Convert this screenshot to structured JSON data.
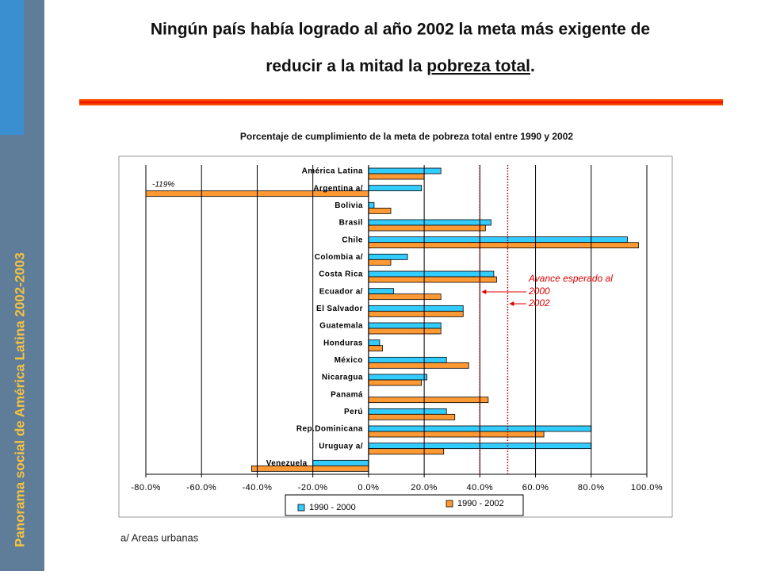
{
  "slide": {
    "sidebar": "Panorama social de América Latina 2002-2003",
    "title_line1": "Ningún país había logrado al año 2002 la meta más exigente de",
    "title_line2_start": "reducir a la mitad la ",
    "title_line2_underlined": "pobreza total",
    "title_line2_end": ".",
    "footnote": "a/ Areas urbanas"
  },
  "chart_data": {
    "type": "hbar",
    "title": "Porcentaje de cumplimiento de la meta de pobreza total entre 1990 y 2002",
    "categories": [
      "América Latina",
      "Argentina a/",
      "Bolivia",
      "Brasil",
      "Chile",
      "Colombia a/",
      "Costa Rica",
      "Ecuador a/",
      "El Salvador",
      "Guatemala",
      "Honduras",
      "México",
      "Nicaragua",
      "Panamá",
      "Perú",
      "Rep.Dominicana",
      "Uruguay a/",
      "Venezuela"
    ],
    "series": [
      {
        "name": "1990 - 2000",
        "color": "#33ccff",
        "values": [
          26,
          19,
          2,
          44,
          93,
          14,
          45,
          9,
          34,
          26,
          4,
          28,
          21,
          null,
          28,
          80,
          80,
          -20
        ]
      },
      {
        "name": "1990 - 2002",
        "color": "#ff9933",
        "values": [
          20,
          -119,
          8,
          42,
          97,
          8,
          46,
          26,
          34,
          26,
          5,
          36,
          19,
          43,
          31,
          63,
          27,
          -42
        ],
        "value_labels": [
          null,
          "-119%",
          null,
          null,
          null,
          null,
          null,
          null,
          null,
          null,
          null,
          null,
          null,
          null,
          null,
          null,
          null,
          null
        ]
      }
    ],
    "xlim": [
      -80,
      100
    ],
    "xticks": [
      {
        "value": -80,
        "label": "-80.0%"
      },
      {
        "value": -60,
        "label": "-60.0%"
      },
      {
        "value": -40,
        "label": "-40.0%"
      },
      {
        "value": -20,
        "label": "-20.0%"
      },
      {
        "value": 0,
        "label": "0.0%"
      },
      {
        "value": 20,
        "label": "20.0%"
      },
      {
        "value": 40,
        "label": "40.0%"
      },
      {
        "value": 60,
        "label": "60.0%"
      },
      {
        "value": 80,
        "label": "80.0%"
      },
      {
        "value": 100,
        "label": "100.0%"
      }
    ],
    "grid": true,
    "legend": "bottom",
    "annotation": "Avance esperado al",
    "reference_lines": [
      {
        "value": 40,
        "label": "2000"
      },
      {
        "value": 50,
        "label": "2002"
      }
    ]
  }
}
